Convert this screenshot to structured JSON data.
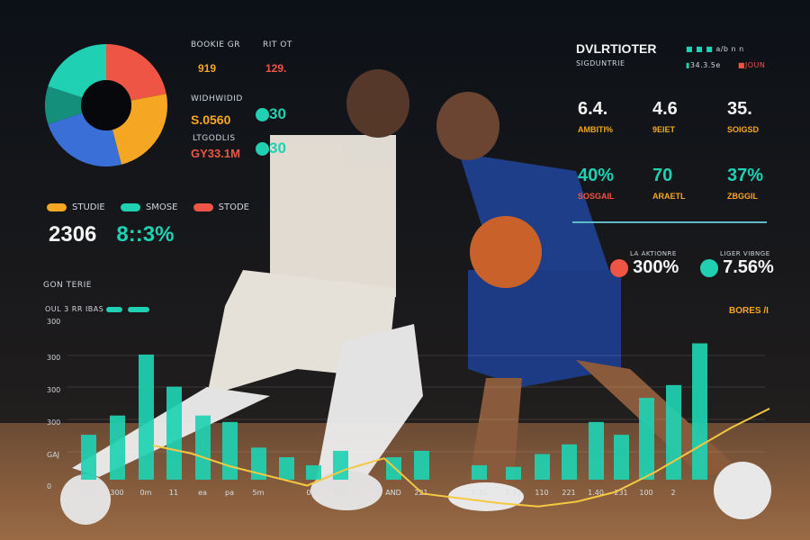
{
  "donut": {
    "segments": [
      {
        "color": "#ee5544",
        "value": 22
      },
      {
        "color": "#f5a623",
        "value": 24
      },
      {
        "color": "#3a6fd8",
        "value": 24
      },
      {
        "color": "#138f7c",
        "value": 10
      },
      {
        "color": "#1fd1b2",
        "value": 20
      }
    ]
  },
  "left_stats": [
    {
      "label": "BOOKIE GR",
      "value": "919",
      "value_color": "#f5a623",
      "side_label": "RIT OT",
      "side_value": "129.",
      "side_color": "#ee5544"
    },
    {
      "label": "WIDHWIDID",
      "value": "S.0560",
      "value_color": "#f5a623",
      "side_value": "30",
      "side_color": "#1fd1b2"
    },
    {
      "label": "LTGODLIS",
      "value": "GY33.1M",
      "value_color": "#ee5544",
      "side_value": "30",
      "side_color": "#1fd1b2"
    }
  ],
  "legend": [
    {
      "label": "STUDIE",
      "color": "#f5a623"
    },
    {
      "label": "SMOSE",
      "color": "#1fd1b2"
    },
    {
      "label": "STODE",
      "color": "#ee5544"
    }
  ],
  "totals": [
    {
      "value": "2306",
      "color": "#f4f4f4"
    },
    {
      "value": "8::3%",
      "color": "#1fd1b2"
    }
  ],
  "right_panel": {
    "title": "DVLRTIOTER",
    "subtitle": "SIGDUNTRIE",
    "legend_top": "a/b n n",
    "legend_a": "34.3.5e",
    "legend_b": "JOUN",
    "stats_row1": [
      {
        "value": "6.4.",
        "label": "AMBITI%"
      },
      {
        "value": "4.6",
        "label": "9EIET"
      },
      {
        "value": "35.",
        "label": "SOIGSD"
      }
    ],
    "stats_row2": [
      {
        "value": "40%",
        "label": "SOSGAIL",
        "label_color": "#ee5544"
      },
      {
        "value": "70",
        "label": "ARAETL",
        "label_color": "#f5a623"
      },
      {
        "value": "37%",
        "label": "ZBGGIL",
        "label_color": "#f5a623"
      }
    ],
    "kpis": [
      {
        "label": "LA AKTIONRE",
        "value": "300%",
        "dot": "#ee5544"
      },
      {
        "label": "LIGER VIBNGE",
        "value": "7.56%",
        "dot": "#1fd1b2"
      }
    ],
    "footnote": "BORES /I"
  },
  "chart_data": {
    "type": "bar",
    "title": "GON TERIE",
    "subtitle": "OUL 3 RR IBAS",
    "yticks": [
      "300",
      "300",
      "300",
      "300",
      "GAJ",
      "0"
    ],
    "xticks": [
      "ED",
      "300",
      "0m",
      "11",
      "ea",
      "pa",
      "5m",
      "",
      "000",
      "000",
      "AND",
      "221",
      "",
      "3.30",
      "3.33",
      "110",
      "221",
      "1.40",
      "231",
      "100",
      "2"
    ],
    "values": [
      28,
      40,
      78,
      58,
      40,
      36,
      20,
      14,
      9,
      18,
      14,
      18,
      0,
      9,
      8,
      16,
      22,
      36,
      28,
      51,
      59,
      85
    ],
    "line": [
      55,
      50,
      42,
      36,
      30,
      40,
      47,
      25,
      22,
      19,
      17,
      20,
      26,
      38,
      52,
      66,
      78
    ],
    "bar_color": "#1fd1b2",
    "line_color": "#f5c842"
  }
}
